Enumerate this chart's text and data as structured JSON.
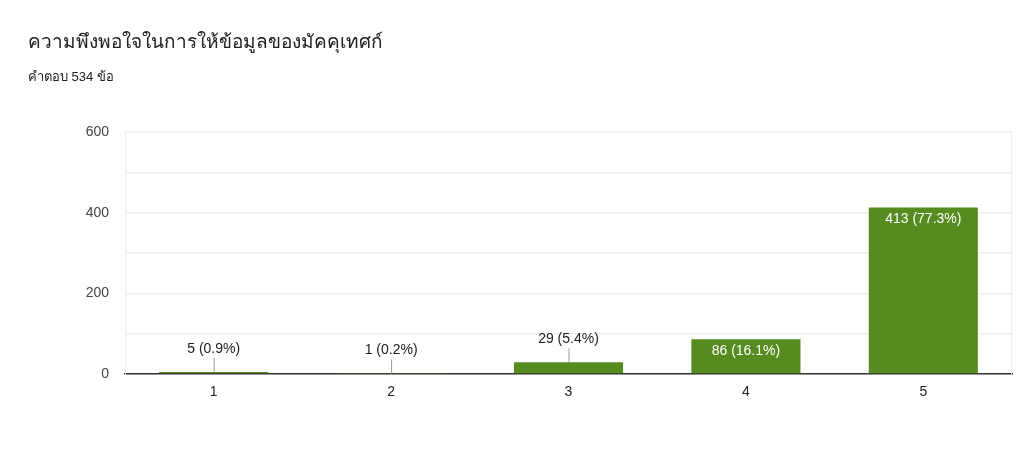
{
  "chart_data": {
    "type": "bar",
    "title": "ความพึงพอใจในการให้ข้อมูลของมัคคุเทศก์",
    "subtitle": "คำตอบ 534 ข้อ",
    "categories": [
      "1",
      "2",
      "3",
      "4",
      "5"
    ],
    "values": [
      5,
      1,
      29,
      86,
      413
    ],
    "color": "#558b1f",
    "value_labels": [
      "5 (0.9%)",
      "1 (0.2%)",
      "29 (5.4%)",
      "86 (16.1%)",
      "413 (77.3%)"
    ],
    "ylim": [
      0,
      600
    ],
    "yticks": [
      0,
      {
        "value": 100,
        "label": null
      },
      200,
      {
        "value": 300,
        "label": null
      },
      400,
      {
        "value": 500,
        "label": null
      },
      600
    ],
    "grid": "y"
  }
}
